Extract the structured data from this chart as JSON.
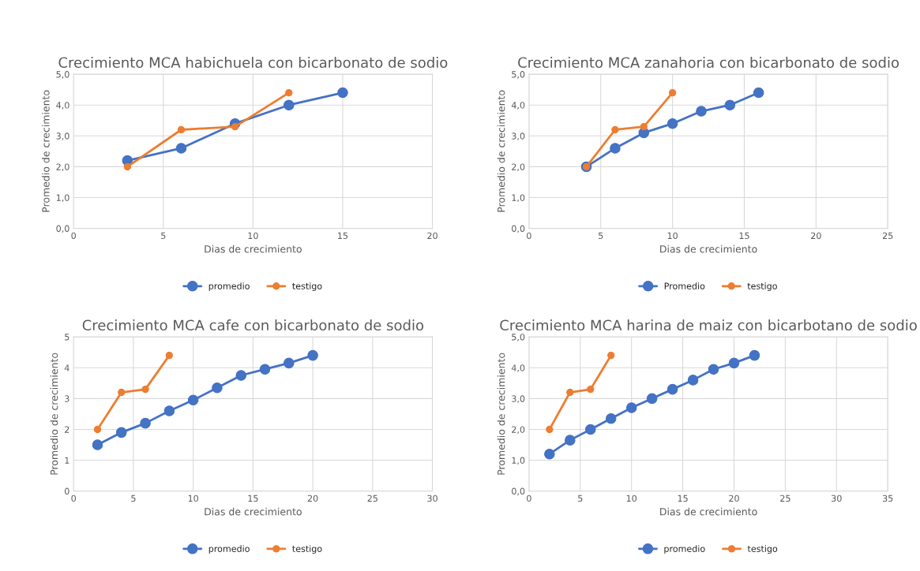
{
  "chart_data": [
    {
      "type": "line",
      "title": "Crecimiento MCA habichuela con bicarbonato de sodio",
      "xlabel": "Dias de crecimiento",
      "ylabel": "Promedio de crecimiento",
      "xlim": [
        0,
        20
      ],
      "xticks": [
        0,
        5,
        10,
        15,
        20
      ],
      "ylim": [
        0,
        5
      ],
      "yticks": [
        {
          "value": 0,
          "label": "0,0"
        },
        {
          "value": 1,
          "label": "1,0"
        },
        {
          "value": 2,
          "label": "2,0"
        },
        {
          "value": 3,
          "label": "3,0"
        },
        {
          "value": 4,
          "label": "4,0"
        },
        {
          "value": 5,
          "label": "5,0"
        }
      ],
      "grid": true,
      "legend": "bottom",
      "marker": "circle",
      "line_style": "solid",
      "series": [
        {
          "name": "promedio",
          "color": "#4472c4",
          "x": [
            3,
            6,
            9,
            12,
            15
          ],
          "values": [
            2.2,
            2.6,
            3.4,
            4.0,
            4.4
          ]
        },
        {
          "name": "testigo",
          "color": "#ed7d31",
          "x": [
            3,
            6,
            9,
            12
          ],
          "values": [
            2.0,
            3.2,
            3.3,
            4.4
          ]
        }
      ]
    },
    {
      "type": "line",
      "title": "Crecimiento MCA zanahoria con bicarbonato de sodio",
      "xlabel": "Dias de crecimiento",
      "ylabel": "Promedio de crecimiento",
      "xlim": [
        0,
        25
      ],
      "xticks": [
        0,
        5,
        10,
        15,
        20,
        25
      ],
      "ylim": [
        0,
        5
      ],
      "yticks": [
        {
          "value": 0,
          "label": "0,0"
        },
        {
          "value": 1,
          "label": "1,0"
        },
        {
          "value": 2,
          "label": "2,0"
        },
        {
          "value": 3,
          "label": "3,0"
        },
        {
          "value": 4,
          "label": "4,0"
        },
        {
          "value": 5,
          "label": "5,0"
        }
      ],
      "grid": true,
      "legend": "bottom",
      "marker": "circle",
      "line_style": "solid",
      "series": [
        {
          "name": "Promedio",
          "color": "#4472c4",
          "x": [
            4,
            6,
            8,
            10,
            12,
            14,
            16
          ],
          "values": [
            2.0,
            2.6,
            3.1,
            3.4,
            3.8,
            4.0,
            4.4
          ]
        },
        {
          "name": "testigo",
          "color": "#ed7d31",
          "x": [
            4,
            6,
            8,
            10
          ],
          "values": [
            2.0,
            3.2,
            3.3,
            4.4
          ]
        }
      ]
    },
    {
      "type": "line",
      "title": "Crecimiento MCA cafe con bicarbonato de sodio",
      "xlabel": "Dias de crecimiento",
      "ylabel": "Promedio de crecimiento",
      "xlim": [
        0,
        30
      ],
      "xticks": [
        0,
        5,
        10,
        15,
        20,
        25,
        30
      ],
      "ylim": [
        0,
        5
      ],
      "yticks": [
        0,
        1,
        2,
        3,
        4,
        5
      ],
      "grid": true,
      "legend": "bottom",
      "marker": "circle",
      "line_style": "solid",
      "series": [
        {
          "name": "promedio",
          "color": "#4472c4",
          "x": [
            2,
            4,
            6,
            8,
            10,
            12,
            14,
            16,
            18,
            20
          ],
          "values": [
            1.5,
            1.9,
            2.2,
            2.6,
            2.95,
            3.35,
            3.75,
            3.95,
            4.15,
            4.4
          ]
        },
        {
          "name": "testigo",
          "color": "#ed7d31",
          "x": [
            2,
            4,
            6,
            8
          ],
          "values": [
            2.0,
            3.2,
            3.3,
            4.4
          ]
        }
      ]
    },
    {
      "type": "line",
      "title": "Crecimiento MCA harina de maiz con bicarbotano de sodio",
      "xlabel": "Dias de crecimiento",
      "ylabel": "Promedio de crecimiento",
      "xlim": [
        0,
        35
      ],
      "xticks": [
        0,
        5,
        10,
        15,
        20,
        25,
        30,
        35
      ],
      "ylim": [
        0,
        5
      ],
      "yticks": [
        {
          "value": 0,
          "label": "0,0"
        },
        {
          "value": 1,
          "label": "1,0"
        },
        {
          "value": 2,
          "label": "2,0"
        },
        {
          "value": 3,
          "label": "3,0"
        },
        {
          "value": 4,
          "label": "4,0"
        },
        {
          "value": 5,
          "label": "5,0"
        }
      ],
      "grid": true,
      "legend": "bottom",
      "marker": "circle",
      "line_style": "solid",
      "series": [
        {
          "name": "promedio",
          "color": "#4472c4",
          "x": [
            2,
            4,
            6,
            8,
            10,
            12,
            14,
            16,
            18,
            20,
            22
          ],
          "values": [
            1.2,
            1.65,
            2.0,
            2.35,
            2.7,
            3.0,
            3.3,
            3.6,
            3.95,
            4.15,
            4.4
          ]
        },
        {
          "name": "testigo",
          "color": "#ed7d31",
          "x": [
            2,
            4,
            6,
            8
          ],
          "values": [
            2.0,
            3.2,
            3.3,
            4.4
          ]
        }
      ]
    }
  ]
}
